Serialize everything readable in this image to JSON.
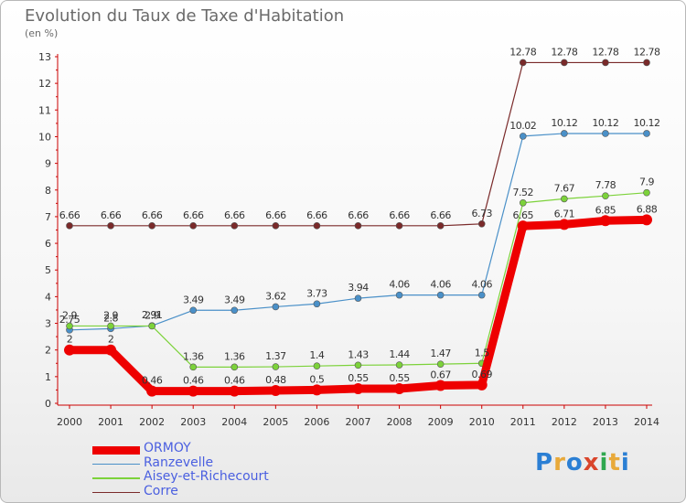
{
  "title": "Evolution du Taux de Taxe d'Habitation",
  "subtitle": "(en %)",
  "brand": {
    "text": "Proxiti",
    "colors": [
      "#2b7fd4",
      "#e8a93a",
      "#2b7fd4",
      "#d9452b",
      "#2fa84f",
      "#e8a93a",
      "#2b7fd4"
    ]
  },
  "chart_data": {
    "type": "line",
    "title": "Evolution du Taux de Taxe d'Habitation",
    "ylabel": "(en %)",
    "x": [
      "2000",
      "2001",
      "2002",
      "2003",
      "2004",
      "2005",
      "2006",
      "2007",
      "2008",
      "2009",
      "2010",
      "2011",
      "2012",
      "2013",
      "2014"
    ],
    "ylim": [
      0,
      13
    ],
    "yticks": [
      "0",
      "1",
      "2",
      "3",
      "4",
      "5",
      "6",
      "7",
      "8",
      "9",
      "10",
      "11",
      "12",
      "13"
    ],
    "grid": false,
    "legend_position": "bottom-left",
    "series": [
      {
        "name": "ORMOY",
        "color": "#ee0000",
        "values": [
          2,
          2,
          0.46,
          0.46,
          0.46,
          0.48,
          0.5,
          0.55,
          0.55,
          0.67,
          0.69,
          6.65,
          6.71,
          6.85,
          6.88
        ],
        "labels": [
          "2",
          "2",
          "0.46",
          "0.46",
          "0.46",
          "0.48",
          "0.5",
          "0.55",
          "0.55",
          "0.67",
          "0.69",
          "6.65",
          "6.71",
          "6.85",
          "6.88"
        ]
      },
      {
        "name": "Ranzevelle",
        "color": "#4a90c8",
        "values": [
          2.75,
          2.8,
          2.91,
          3.49,
          3.49,
          3.62,
          3.73,
          3.94,
          4.06,
          4.06,
          4.06,
          10.02,
          10.12,
          10.12,
          10.12
        ],
        "labels": [
          "2.75",
          "2.8",
          "2.91",
          "3.49",
          "3.49",
          "3.62",
          "3.73",
          "3.94",
          "4.06",
          "4.06",
          "4.06",
          "10.02",
          "10.12",
          "10.12",
          "10.12"
        ]
      },
      {
        "name": "Aisey-et-Richecourt",
        "color": "#7cd23a",
        "values": [
          2.9,
          2.9,
          2.9,
          1.36,
          1.36,
          1.37,
          1.4,
          1.43,
          1.44,
          1.47,
          1.5,
          7.52,
          7.67,
          7.78,
          7.9
        ],
        "labels": [
          "2.9",
          "2.9",
          "2.9",
          "1.36",
          "1.36",
          "1.37",
          "1.4",
          "1.43",
          "1.44",
          "1.47",
          "1.5",
          "7.52",
          "7.67",
          "7.78",
          "7.9"
        ]
      },
      {
        "name": "Corre",
        "color": "#7a2a2a",
        "values": [
          6.66,
          6.66,
          6.66,
          6.66,
          6.66,
          6.66,
          6.66,
          6.66,
          6.66,
          6.66,
          6.73,
          12.78,
          12.78,
          12.78,
          12.78
        ],
        "labels": [
          "6.66",
          "6.66",
          "6.66",
          "6.66",
          "6.66",
          "6.66",
          "6.66",
          "6.66",
          "6.66",
          "6.66",
          "6.73",
          "12.78",
          "12.78",
          "12.78",
          "12.78"
        ]
      }
    ]
  }
}
